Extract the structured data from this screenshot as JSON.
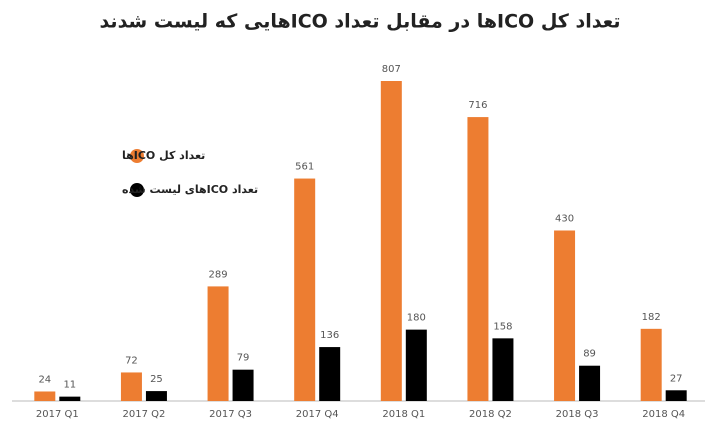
{
  "chart_data": {
    "type": "bar",
    "title": "تعداد کل ICOها در مقابل تعداد ICOهایی که لیست شدند",
    "categories": [
      "2017 Q1",
      "2017 Q2",
      "2017 Q3",
      "2017 Q4",
      "2018 Q1",
      "2018 Q2",
      "2018 Q3",
      "2018 Q4"
    ],
    "series": [
      {
        "name": "تعداد کل ICOها",
        "color": "#ed7d31",
        "values": [
          24,
          72,
          289,
          561,
          807,
          716,
          430,
          182
        ]
      },
      {
        "name": "تعداد ICOهای لیست شده",
        "color": "#000000",
        "values": [
          11,
          25,
          79,
          136,
          180,
          158,
          89,
          27
        ]
      }
    ],
    "legend": "left"
  }
}
